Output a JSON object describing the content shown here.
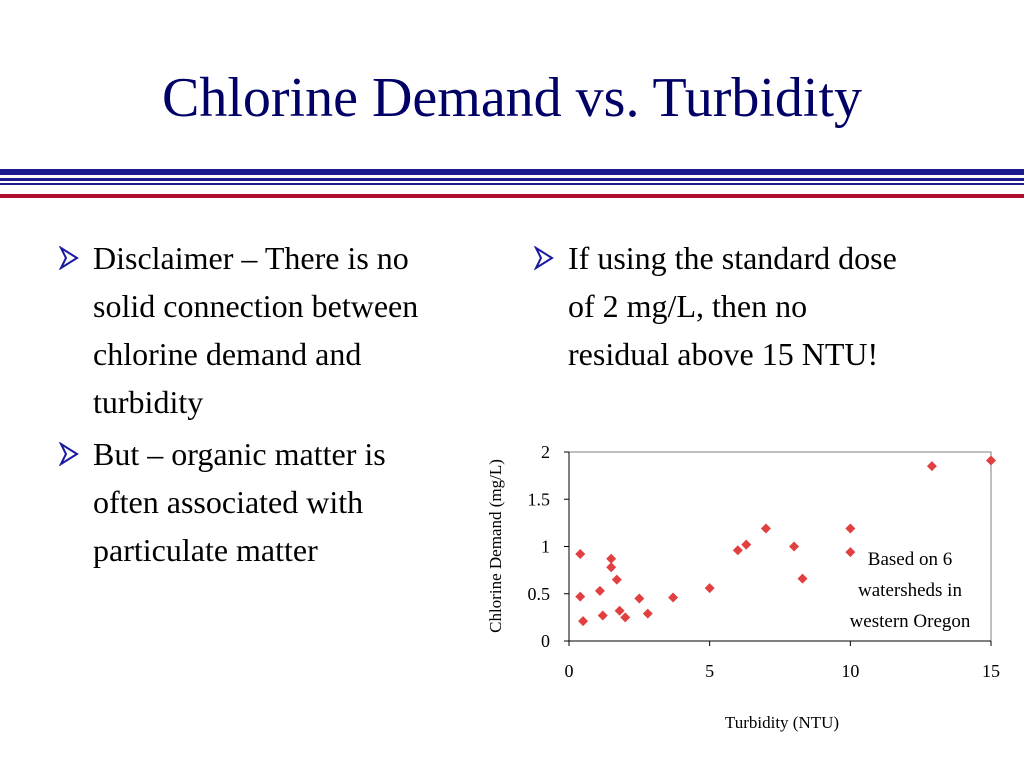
{
  "slide": {
    "title": "Chlorine Demand vs. Turbidity",
    "colors": {
      "title": "#000066",
      "rule_blue": "#1c1c8c",
      "rule_red": "#b01030",
      "arrow": "#1a1aa0",
      "marker": "#e04040"
    }
  },
  "bullets_left": [
    {
      "text": "Disclaimer – There is no solid connection between chlorine demand and turbidity",
      "icon": "arrow-bullet-icon"
    },
    {
      "text": "But – organic matter is often associated with particulate matter",
      "icon": "arrow-bullet-icon"
    }
  ],
  "bullets_right": [
    {
      "text": "If using the standard dose of 2 mg/L, then no residual above 15 NTU!",
      "icon": "arrow-bullet-icon"
    }
  ],
  "chart_data": {
    "type": "scatter",
    "title": "",
    "xlabel": "Turbidity (NTU)",
    "ylabel": "Chlorine Demand (mg/L)",
    "xlim": [
      0,
      15
    ],
    "ylim": [
      0,
      2
    ],
    "xticks": [
      0,
      5,
      10,
      15
    ],
    "xtick_labels": [
      "0",
      "5",
      "10",
      "15"
    ],
    "yticks": [
      0,
      0.5,
      1,
      1.5,
      2
    ],
    "ytick_labels": [
      "0",
      "0.5",
      "1",
      "1.5",
      "2"
    ],
    "grid": false,
    "legend": false,
    "marker": "diamond",
    "annotation": "Based on 6 watersheds in western Oregon",
    "series": [
      {
        "x": [
          0.4,
          0.4,
          0.5,
          1.1,
          1.2,
          1.5,
          1.5,
          1.7,
          1.8,
          2.0,
          2.5,
          2.8,
          3.7,
          5.0,
          6.0,
          6.3,
          7.0,
          8.0,
          8.3,
          10.0,
          10.0,
          12.9,
          15.0
        ],
        "y": [
          0.47,
          0.92,
          0.21,
          0.53,
          0.27,
          0.78,
          0.87,
          0.65,
          0.32,
          0.25,
          0.45,
          0.29,
          0.46,
          0.56,
          0.96,
          1.02,
          1.19,
          1.0,
          0.66,
          1.19,
          0.94,
          1.85,
          1.91
        ]
      }
    ]
  }
}
